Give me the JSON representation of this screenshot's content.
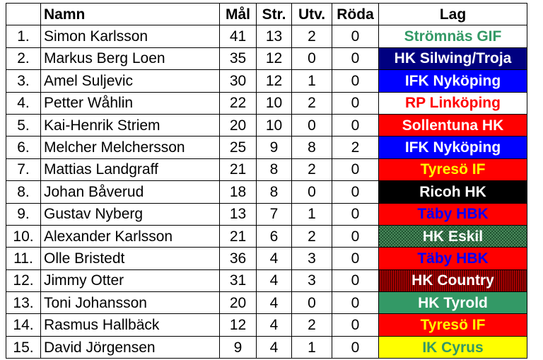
{
  "headers": {
    "rank": "",
    "name": "Namn",
    "goals": "Mål",
    "penalty_shots": "Str.",
    "suspensions": "Utv.",
    "red_cards": "Röda",
    "team": "Lag"
  },
  "rows": [
    {
      "rank": "1.",
      "name": "Simon Karlsson",
      "goals": "41",
      "str": "13",
      "utv": "2",
      "roda": "0",
      "team": "Strömnäs GIF",
      "bg": "#ffffff",
      "fg": "#339966"
    },
    {
      "rank": "2.",
      "name": "Markus Berg Loen",
      "goals": "35",
      "str": "12",
      "utv": "0",
      "roda": "0",
      "team": "HK Silwing/Troja",
      "bg": "#000080",
      "fg": "#ffffff"
    },
    {
      "rank": "3.",
      "name": "Amel Suljevic",
      "goals": "30",
      "str": "12",
      "utv": "1",
      "roda": "0",
      "team": "IFK Nyköping",
      "bg": "#0000ff",
      "fg": "#ffffff"
    },
    {
      "rank": "4.",
      "name": "Petter Wåhlin",
      "goals": "22",
      "str": "10",
      "utv": "2",
      "roda": "0",
      "team": "RP Linköping",
      "bg": "#ffffff",
      "fg": "#ff0000"
    },
    {
      "rank": "5.",
      "name": "Kai-Henrik Striem",
      "goals": "20",
      "str": "10",
      "utv": "0",
      "roda": "0",
      "team": "Sollentuna HK",
      "bg": "#ff0000",
      "fg": "#ffffff"
    },
    {
      "rank": "6.",
      "name": "Melcher Melchersson",
      "goals": "25",
      "str": "9",
      "utv": "8",
      "roda": "2",
      "team": "IFK Nyköping",
      "bg": "#0000ff",
      "fg": "#ffffff"
    },
    {
      "rank": "7.",
      "name": "Mattias Landgraff",
      "goals": "21",
      "str": "8",
      "utv": "2",
      "roda": "0",
      "team": "Tyresö IF",
      "bg": "#ff0000",
      "fg": "#ffff00"
    },
    {
      "rank": "8.",
      "name": "Johan Båverud",
      "goals": "18",
      "str": "8",
      "utv": "0",
      "roda": "0",
      "team": "Ricoh HK",
      "bg": "#000000",
      "fg": "#ffffff"
    },
    {
      "rank": "9.",
      "name": "Gustav Nyberg",
      "goals": "13",
      "str": "7",
      "utv": "1",
      "roda": "0",
      "team": "Täby HBK",
      "bg": "#ff0000",
      "fg": "#0000ff"
    },
    {
      "rank": "10.",
      "name": "Alexander Karlsson",
      "goals": "21",
      "str": "6",
      "utv": "2",
      "roda": "0",
      "team": "HK Eskil",
      "bg": "#1a4a2a",
      "fg": "#ffffff",
      "pattern": "pat-eskil"
    },
    {
      "rank": "11.",
      "name": "Olle Bristedt",
      "goals": "36",
      "str": "4",
      "utv": "3",
      "roda": "0",
      "team": "Täby HBK",
      "bg": "#ff0000",
      "fg": "#0000ff"
    },
    {
      "rank": "12.",
      "name": "Jimmy Otter",
      "goals": "31",
      "str": "4",
      "utv": "3",
      "roda": "0",
      "team": "HK Country",
      "bg": "#8a0000",
      "fg": "#ffffff",
      "pattern": "pat-country"
    },
    {
      "rank": "13.",
      "name": "Toni Johansson",
      "goals": "20",
      "str": "4",
      "utv": "0",
      "roda": "0",
      "team": "HK Tyrold",
      "bg": "#339966",
      "fg": "#ffffff"
    },
    {
      "rank": "14.",
      "name": "Rasmus Hallbäck",
      "goals": "12",
      "str": "4",
      "utv": "2",
      "roda": "0",
      "team": "Tyresö IF",
      "bg": "#ff0000",
      "fg": "#ffff00"
    },
    {
      "rank": "15.",
      "name": "David Jörgensen",
      "goals": "9",
      "str": "4",
      "utv": "1",
      "roda": "0",
      "team": "IK Cyrus",
      "bg": "#ffff00",
      "fg": "#339966"
    }
  ]
}
